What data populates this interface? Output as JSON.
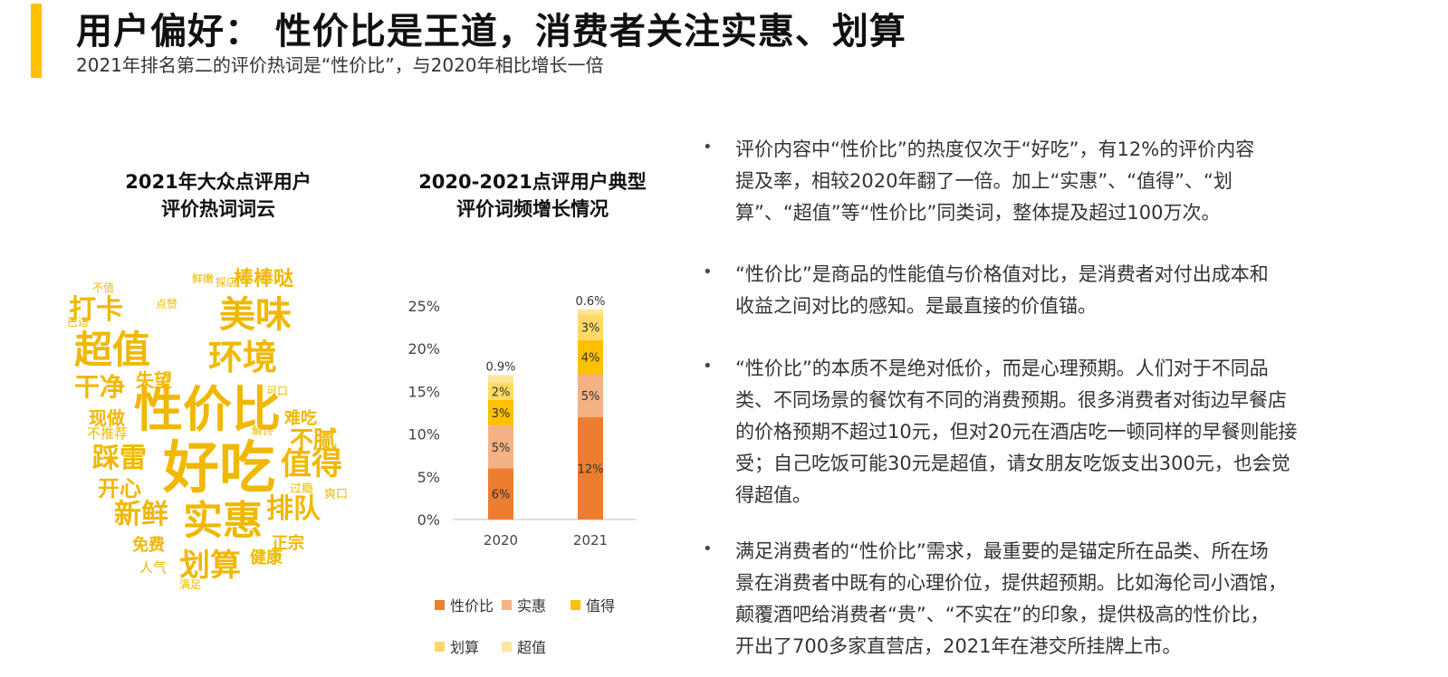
{
  "header": {
    "title": "用户偏好： 性价比是王道，消费者关注实惠、划算",
    "subtitle": "2021年排名第二的评价热词是“性价比”，与2020年相比增长一倍",
    "accent_color": "#FFC000"
  },
  "wordcloud": {
    "title_line1": "2021年大众点评用户",
    "title_line2": "评价热词词云",
    "color": "#F0B800",
    "words": [
      {
        "text": "好吃",
        "size": 62
      },
      {
        "text": "性价比",
        "size": 54
      },
      {
        "text": "实惠",
        "size": 44
      },
      {
        "text": "超值",
        "size": 42
      },
      {
        "text": "美味",
        "size": 40
      },
      {
        "text": "环境",
        "size": 38
      },
      {
        "text": "划算",
        "size": 34
      },
      {
        "text": "值得",
        "size": 34
      },
      {
        "text": "打卡",
        "size": 30
      },
      {
        "text": "新鲜",
        "size": 30
      },
      {
        "text": "排队",
        "size": 30
      },
      {
        "text": "踩雷",
        "size": 30
      },
      {
        "text": "干净",
        "size": 28
      },
      {
        "text": "不腻",
        "size": 26
      },
      {
        "text": "棒棒哒",
        "size": 22
      },
      {
        "text": "开心",
        "size": 24
      },
      {
        "text": "失望",
        "size": 20
      },
      {
        "text": "现做",
        "size": 20
      },
      {
        "text": "难吃",
        "size": 18
      },
      {
        "text": "免费",
        "size": 18
      },
      {
        "text": "正宗",
        "size": 18
      },
      {
        "text": "健康",
        "size": 18
      },
      {
        "text": "不推荐",
        "size": 15
      },
      {
        "text": "人气",
        "size": 15
      },
      {
        "text": "过瘾",
        "size": 13
      },
      {
        "text": "爽口",
        "size": 13
      },
      {
        "text": "可口",
        "size": 12
      },
      {
        "text": "点赞",
        "size": 12
      },
      {
        "text": "不值",
        "size": 12
      },
      {
        "text": "满足",
        "size": 12
      },
      {
        "text": "探店",
        "size": 12
      },
      {
        "text": "鲜嫩",
        "size": 12
      },
      {
        "text": "巴适",
        "size": 12
      },
      {
        "text": "解馋",
        "size": 12
      }
    ]
  },
  "chart_data": {
    "type": "bar",
    "stacked": true,
    "title": "2020-2021点评用户典型评价词频增长情况",
    "title_line1": "2020-2021点评用户典型",
    "title_line2": "评价词频增长情况",
    "categories": [
      "2020",
      "2021"
    ],
    "ylim": [
      0,
      25
    ],
    "yticks": [
      "0%",
      "5%",
      "10%",
      "15%",
      "20%",
      "25%"
    ],
    "series": [
      {
        "name": "性价比",
        "color": "#ED7D31",
        "values": [
          6,
          12
        ],
        "labels": [
          "6%",
          "12%"
        ]
      },
      {
        "name": "实惠",
        "color": "#F4B183",
        "values": [
          5,
          5
        ],
        "labels": [
          "5%",
          "5%"
        ]
      },
      {
        "name": "值得",
        "color": "#FFC000",
        "values": [
          3,
          4
        ],
        "labels": [
          "3%",
          "4%"
        ]
      },
      {
        "name": "划算",
        "color": "#FFD966",
        "values": [
          2,
          3
        ],
        "labels": [
          "2%",
          "3%"
        ]
      },
      {
        "name": "超值",
        "color": "#FFE699",
        "values": [
          0.9,
          0.6
        ],
        "labels": [
          "0.9%",
          "0.6%"
        ]
      }
    ],
    "legend_position": "bottom"
  },
  "bullets": [
    {
      "lines": [
        "评价内容中“性价比”的热度仅次于“好吃”，有12%的评价内容",
        "提及率，相较2020年翻了一倍。加上“实惠”、“值得”、“划",
        "算”、“超值”等“性价比”同类词，整体提及超过100万次。"
      ]
    },
    {
      "lines": [
        "“性价比”是商品的性能值与价格值对比，是消费者对付出成本和",
        "收益之间对比的感知。是最直接的价值锚。"
      ]
    },
    {
      "lines": [
        "“性价比”的本质不是绝对低价，而是心理预期。人们对于不同品",
        "类、不同场景的餐饮有不同的消费预期。很多消费者对街边早餐店",
        "的价格预期不超过10元，但对20元在酒店吃一顿同样的早餐则能接",
        "受；自己吃饭可能30元是超值，请女朋友吃饭支出300元，也会觉",
        "得超值。"
      ]
    },
    {
      "lines": [
        "满足消费者的“性价比”需求，最重要的是锚定所在品类、所在场",
        "景在消费者中既有的心理价位，提供超预期。比如海伦司小酒馆，",
        "颠覆酒吧给消费者“贵”、“不实在”的印象，提供极高的性价比，",
        "开出了700多家直营店，2021年在港交所挂牌上市。"
      ]
    }
  ]
}
